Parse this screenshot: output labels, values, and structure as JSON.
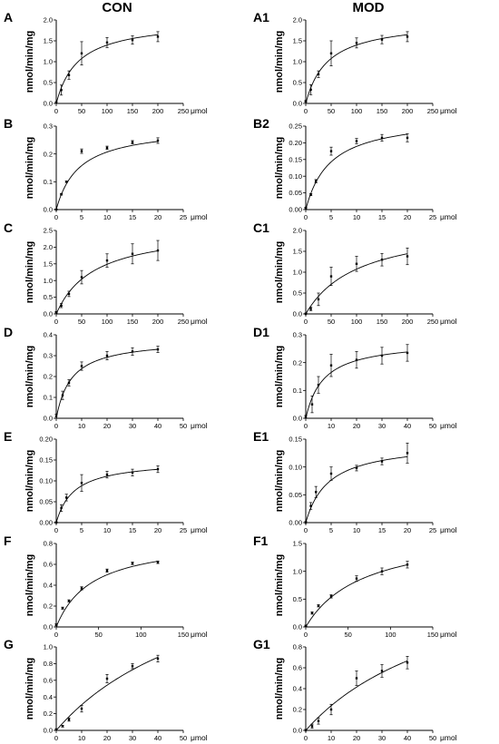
{
  "columns": {
    "left_title": "CON",
    "right_title": "MOD"
  },
  "chart_data": [
    {
      "panel": "A",
      "column": "CON",
      "type": "scatter",
      "xlabel": "μmol",
      "ylabel": "nmol/min/mg",
      "xlim": [
        0,
        250
      ],
      "ylim": [
        0,
        2.0
      ],
      "xticks": [
        0,
        50,
        100,
        150,
        200,
        250
      ],
      "yticks": [
        0,
        0.5,
        1.0,
        1.5,
        2.0
      ],
      "x": [
        0,
        10,
        25,
        50,
        100,
        150,
        200
      ],
      "y": [
        0.02,
        0.32,
        0.68,
        1.2,
        1.46,
        1.52,
        1.6
      ],
      "err": [
        0.02,
        0.12,
        0.1,
        0.28,
        0.12,
        0.1,
        0.12
      ],
      "fit": {
        "vmax": 2.0,
        "km": 43
      }
    },
    {
      "panel": "A1",
      "column": "MOD",
      "type": "scatter",
      "xlabel": "μmol",
      "ylabel": "nmol/min/mg",
      "xlim": [
        0,
        250
      ],
      "ylim": [
        0,
        2.0
      ],
      "xticks": [
        0,
        50,
        100,
        150,
        200,
        250
      ],
      "yticks": [
        0,
        0.5,
        1.0,
        1.5,
        2.0
      ],
      "x": [
        0,
        10,
        25,
        50,
        100,
        150,
        200
      ],
      "y": [
        0.05,
        0.33,
        0.7,
        1.2,
        1.45,
        1.53,
        1.6
      ],
      "err": [
        0.02,
        0.12,
        0.08,
        0.3,
        0.12,
        0.1,
        0.12
      ],
      "fit": {
        "vmax": 2.0,
        "km": 43
      }
    },
    {
      "panel": "B",
      "column": "CON",
      "type": "scatter",
      "xlabel": "μmol",
      "ylabel": "nmol/min/mg",
      "xlim": [
        0,
        25
      ],
      "ylim": [
        0,
        0.3
      ],
      "xticks": [
        0,
        5,
        10,
        15,
        20,
        25
      ],
      "yticks": [
        0,
        0.1,
        0.2,
        0.3
      ],
      "x": [
        0,
        1,
        2,
        5,
        10,
        15,
        20
      ],
      "y": [
        0.0,
        0.055,
        0.1,
        0.21,
        0.222,
        0.242,
        0.248
      ],
      "err": [
        0.002,
        0.003,
        0.003,
        0.008,
        0.006,
        0.006,
        0.01
      ],
      "fit": {
        "vmax": 0.3,
        "km": 4.5
      }
    },
    {
      "panel": "B2",
      "column": "MOD",
      "type": "scatter",
      "xlabel": "μmol",
      "ylabel": "nmol/min/mg",
      "xlim": [
        0,
        25
      ],
      "ylim": [
        0,
        0.25
      ],
      "xticks": [
        0,
        5,
        10,
        15,
        20,
        25
      ],
      "yticks": [
        0,
        0.05,
        0.1,
        0.15,
        0.2,
        0.25
      ],
      "x": [
        0,
        1,
        2,
        5,
        10,
        15,
        20
      ],
      "y": [
        0.005,
        0.045,
        0.085,
        0.175,
        0.205,
        0.215,
        0.215
      ],
      "err": [
        0.002,
        0.003,
        0.005,
        0.012,
        0.008,
        0.01,
        0.012
      ],
      "fit": {
        "vmax": 0.28,
        "km": 4.8
      }
    },
    {
      "panel": "C",
      "column": "CON",
      "type": "scatter",
      "xlabel": "μmol",
      "ylabel": "nmol/min/mg",
      "xlim": [
        0,
        250
      ],
      "ylim": [
        0,
        2.5
      ],
      "xticks": [
        0,
        50,
        100,
        150,
        200,
        250
      ],
      "yticks": [
        0,
        0.5,
        1.0,
        1.5,
        2.0,
        2.5
      ],
      "x": [
        0,
        10,
        25,
        50,
        100,
        150,
        200
      ],
      "y": [
        0.05,
        0.25,
        0.6,
        1.1,
        1.6,
        1.8,
        1.9
      ],
      "err": [
        0.02,
        0.06,
        0.08,
        0.2,
        0.2,
        0.3,
        0.3
      ],
      "fit": {
        "vmax": 2.6,
        "km": 75
      }
    },
    {
      "panel": "C1",
      "column": "MOD",
      "type": "scatter",
      "xlabel": "μmol",
      "ylabel": "nmol/min/mg",
      "xlim": [
        0,
        250
      ],
      "ylim": [
        0,
        2.0
      ],
      "xticks": [
        0,
        50,
        100,
        150,
        200,
        250
      ],
      "yticks": [
        0,
        0.5,
        1.0,
        1.5,
        2.0
      ],
      "x": [
        0,
        10,
        25,
        50,
        100,
        150,
        200
      ],
      "y": [
        0.0,
        0.12,
        0.35,
        0.9,
        1.2,
        1.3,
        1.38
      ],
      "err": [
        0.02,
        0.04,
        0.15,
        0.22,
        0.18,
        0.15,
        0.2
      ],
      "fit": {
        "vmax": 2.2,
        "km": 105
      }
    },
    {
      "panel": "D",
      "column": "CON",
      "type": "scatter",
      "xlabel": "μmol",
      "ylabel": "nmol/min/mg",
      "xlim": [
        0,
        50
      ],
      "ylim": [
        0,
        0.4
      ],
      "xticks": [
        0,
        10,
        20,
        30,
        40,
        50
      ],
      "yticks": [
        0,
        0.1,
        0.2,
        0.3,
        0.4
      ],
      "x": [
        0,
        2.5,
        5,
        10,
        20,
        30,
        40
      ],
      "y": [
        0.01,
        0.11,
        0.17,
        0.25,
        0.3,
        0.32,
        0.33
      ],
      "err": [
        0.01,
        0.02,
        0.015,
        0.02,
        0.02,
        0.018,
        0.015
      ],
      "fit": {
        "vmax": 0.38,
        "km": 6
      }
    },
    {
      "panel": "D1",
      "column": "MOD",
      "type": "scatter",
      "xlabel": "μmol",
      "ylabel": "nmol/min/mg",
      "xlim": [
        0,
        50
      ],
      "ylim": [
        0,
        0.3
      ],
      "xticks": [
        0,
        10,
        20,
        30,
        40,
        50
      ],
      "yticks": [
        0,
        0.1,
        0.2,
        0.3
      ],
      "x": [
        0,
        2.5,
        5,
        10,
        20,
        30,
        40
      ],
      "y": [
        0.005,
        0.05,
        0.12,
        0.19,
        0.21,
        0.225,
        0.235
      ],
      "err": [
        0.005,
        0.03,
        0.03,
        0.04,
        0.03,
        0.03,
        0.03
      ],
      "fit": {
        "vmax": 0.28,
        "km": 7
      }
    },
    {
      "panel": "E",
      "column": "CON",
      "type": "scatter",
      "xlabel": "μmol",
      "ylabel": "nmol/min/mg",
      "xlim": [
        0,
        25
      ],
      "ylim": [
        0,
        0.2
      ],
      "xticks": [
        0,
        5,
        10,
        15,
        20,
        25
      ],
      "yticks": [
        0,
        0.05,
        0.1,
        0.15,
        0.2
      ],
      "x": [
        0,
        1,
        2,
        5,
        10,
        15,
        20
      ],
      "y": [
        0.0,
        0.035,
        0.06,
        0.095,
        0.115,
        0.12,
        0.128
      ],
      "err": [
        0.002,
        0.008,
        0.008,
        0.02,
        0.008,
        0.008,
        0.008
      ],
      "fit": {
        "vmax": 0.15,
        "km": 3.5
      }
    },
    {
      "panel": "E1",
      "column": "MOD",
      "type": "scatter",
      "xlabel": "μmol",
      "ylabel": "nmol/min/mg",
      "xlim": [
        0,
        25
      ],
      "ylim": [
        0,
        0.15
      ],
      "xticks": [
        0,
        5,
        10,
        15,
        20,
        25
      ],
      "yticks": [
        0,
        0.05,
        0.1,
        0.15
      ],
      "x": [
        0,
        1,
        2,
        5,
        10,
        15,
        20
      ],
      "y": [
        0.0,
        0.03,
        0.055,
        0.088,
        0.098,
        0.11,
        0.125
      ],
      "err": [
        0.002,
        0.006,
        0.01,
        0.012,
        0.005,
        0.006,
        0.018
      ],
      "fit": {
        "vmax": 0.145,
        "km": 4.5
      }
    },
    {
      "panel": "F",
      "column": "CON",
      "type": "scatter",
      "xlabel": "μmol",
      "ylabel": "nmol/min/mg",
      "xlim": [
        0,
        150
      ],
      "ylim": [
        0,
        0.8
      ],
      "xticks": [
        0,
        50,
        100,
        150
      ],
      "yticks": [
        0,
        0.2,
        0.4,
        0.6,
        0.8
      ],
      "x": [
        0,
        7.5,
        15,
        30,
        60,
        90,
        120
      ],
      "y": [
        0.02,
        0.18,
        0.25,
        0.37,
        0.54,
        0.61,
        0.62
      ],
      "err": [
        0.01,
        0.01,
        0.01,
        0.015,
        0.015,
        0.012,
        0.012
      ],
      "fit": {
        "vmax": 0.85,
        "km": 42
      }
    },
    {
      "panel": "F1",
      "column": "MOD",
      "type": "scatter",
      "xlabel": "μmol",
      "ylabel": "nmol/min/mg",
      "xlim": [
        0,
        150
      ],
      "ylim": [
        0,
        1.5
      ],
      "xticks": [
        0,
        50,
        100,
        150
      ],
      "yticks": [
        0,
        0.5,
        1.0,
        1.5
      ],
      "x": [
        0,
        7.5,
        15,
        30,
        60,
        90,
        120
      ],
      "y": [
        0.02,
        0.25,
        0.38,
        0.55,
        0.87,
        1.0,
        1.12
      ],
      "err": [
        0.01,
        0.02,
        0.02,
        0.03,
        0.05,
        0.06,
        0.06
      ],
      "fit": {
        "vmax": 1.75,
        "km": 68
      }
    },
    {
      "panel": "G",
      "column": "CON",
      "type": "scatter",
      "xlabel": "μmol",
      "ylabel": "nmol/min/mg",
      "xlim": [
        0,
        50
      ],
      "ylim": [
        0,
        1.0
      ],
      "xticks": [
        0,
        10,
        20,
        30,
        40,
        50
      ],
      "yticks": [
        0,
        0.2,
        0.4,
        0.6,
        0.8,
        1.0
      ],
      "x": [
        0,
        2.5,
        5,
        10,
        20,
        30,
        40
      ],
      "y": [
        0.01,
        0.05,
        0.13,
        0.26,
        0.62,
        0.77,
        0.86
      ],
      "err": [
        0.01,
        0.01,
        0.02,
        0.04,
        0.05,
        0.03,
        0.04
      ],
      "fit": {
        "vmax": 2.3,
        "km": 65
      }
    },
    {
      "panel": "G1",
      "column": "MOD",
      "type": "scatter",
      "xlabel": "μmol",
      "ylabel": "nmol/min/mg",
      "xlim": [
        0,
        50
      ],
      "ylim": [
        0,
        0.8
      ],
      "xticks": [
        0,
        10,
        20,
        30,
        40,
        50
      ],
      "yticks": [
        0,
        0.2,
        0.4,
        0.6,
        0.8
      ],
      "x": [
        0,
        2.5,
        5,
        10,
        20,
        30,
        40
      ],
      "y": [
        0.0,
        0.04,
        0.09,
        0.2,
        0.5,
        0.57,
        0.65
      ],
      "err": [
        0.01,
        0.02,
        0.03,
        0.05,
        0.07,
        0.06,
        0.06
      ],
      "fit": {
        "vmax": 1.7,
        "km": 62
      }
    }
  ]
}
